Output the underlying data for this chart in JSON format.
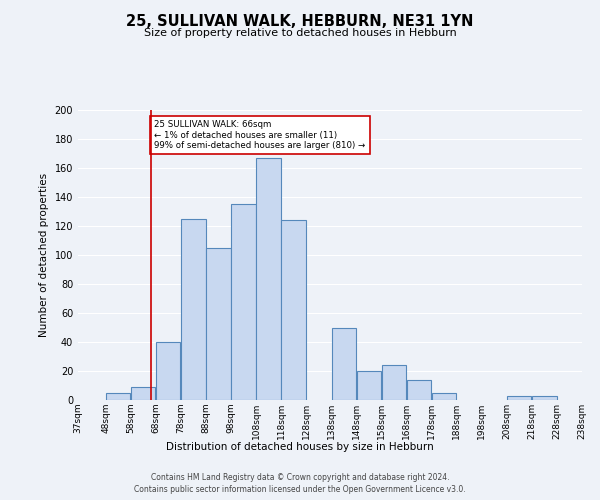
{
  "title": "25, SULLIVAN WALK, HEBBURN, NE31 1YN",
  "subtitle": "Size of property relative to detached houses in Hebburn",
  "xlabel": "Distribution of detached houses by size in Hebburn",
  "ylabel": "Number of detached properties",
  "bin_edges": [
    37,
    48,
    58,
    68,
    78,
    88,
    98,
    108,
    118,
    128,
    138,
    148,
    158,
    168,
    178,
    188,
    198,
    208,
    218,
    228,
    238
  ],
  "bin_labels": [
    "37sqm",
    "48sqm",
    "58sqm",
    "68sqm",
    "78sqm",
    "88sqm",
    "98sqm",
    "108sqm",
    "118sqm",
    "128sqm",
    "138sqm",
    "148sqm",
    "158sqm",
    "168sqm",
    "178sqm",
    "188sqm",
    "198sqm",
    "208sqm",
    "218sqm",
    "228sqm",
    "238sqm"
  ],
  "counts": [
    0,
    5,
    9,
    40,
    125,
    105,
    135,
    167,
    124,
    0,
    50,
    20,
    24,
    14,
    5,
    0,
    0,
    3,
    3,
    0
  ],
  "bar_color": "#c8d8f0",
  "bar_edge_color": "#5588bb",
  "property_line_x": 66,
  "property_line_color": "#cc0000",
  "annotation_box_color": "#cc0000",
  "annotation_text": "25 SULLIVAN WALK: 66sqm\n← 1% of detached houses are smaller (11)\n99% of semi-detached houses are larger (810) →",
  "ylim": [
    0,
    200
  ],
  "yticks": [
    0,
    20,
    40,
    60,
    80,
    100,
    120,
    140,
    160,
    180,
    200
  ],
  "bg_color": "#eef2f8",
  "plot_bg_color": "#eef2f8",
  "grid_color": "#ffffff",
  "footer1": "Contains HM Land Registry data © Crown copyright and database right 2024.",
  "footer2": "Contains public sector information licensed under the Open Government Licence v3.0."
}
